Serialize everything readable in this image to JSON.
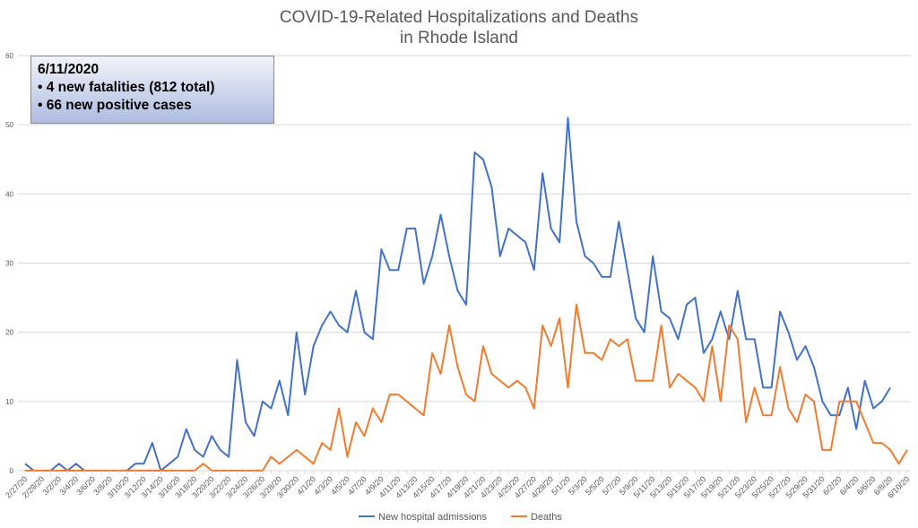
{
  "chart_data": {
    "type": "line",
    "title": [
      "COVID-19-Related Hospitalizations and Deaths",
      "in Rhode Island"
    ],
    "ylim": [
      0,
      60
    ],
    "yticks": [
      0,
      10,
      20,
      30,
      40,
      50,
      60
    ],
    "grid": true,
    "legend_placement": "bottom",
    "x": [
      "2/27/20",
      "2/28/20",
      "2/29/20",
      "3/1/20",
      "3/2/20",
      "3/3/20",
      "3/4/20",
      "3/5/20",
      "3/6/20",
      "3/7/20",
      "3/8/20",
      "3/9/20",
      "3/10/20",
      "3/11/20",
      "3/12/20",
      "3/13/20",
      "3/14/20",
      "3/15/20",
      "3/16/20",
      "3/17/20",
      "3/18/20",
      "3/19/20",
      "3/20/20",
      "3/21/20",
      "3/22/20",
      "3/23/20",
      "3/24/20",
      "3/25/20",
      "3/26/20",
      "3/27/20",
      "3/28/20",
      "3/29/20",
      "3/30/20",
      "3/31/20",
      "4/1/20",
      "4/2/20",
      "4/3/20",
      "4/4/20",
      "4/5/20",
      "4/6/20",
      "4/7/20",
      "4/8/20",
      "4/9/20",
      "4/10/20",
      "4/11/20",
      "4/12/20",
      "4/13/20",
      "4/14/20",
      "4/15/20",
      "4/16/20",
      "4/17/20",
      "4/18/20",
      "4/19/20",
      "4/20/20",
      "4/21/20",
      "4/22/20",
      "4/23/20",
      "4/24/20",
      "4/25/20",
      "4/26/20",
      "4/27/20",
      "4/28/20",
      "4/29/20",
      "4/30/20",
      "5/1/20",
      "5/2/20",
      "5/3/20",
      "5/4/20",
      "5/5/20",
      "5/6/20",
      "5/7/20",
      "5/8/20",
      "5/9/20",
      "5/10/20",
      "5/11/20",
      "5/12/20",
      "5/13/20",
      "5/14/20",
      "5/15/20",
      "5/16/20",
      "5/17/20",
      "5/18/20",
      "5/19/20",
      "5/20/20",
      "5/21/20",
      "5/22/20",
      "5/23/20",
      "5/24/20",
      "5/25/20",
      "5/26/20",
      "5/27/20",
      "5/28/20",
      "5/29/20",
      "5/30/20",
      "5/31/20",
      "6/1/20",
      "6/2/20",
      "6/3/20",
      "6/4/20",
      "6/5/20",
      "6/6/20",
      "6/7/20",
      "6/8/20",
      "6/9/20",
      "6/10/20"
    ],
    "series": [
      {
        "name": "New hospital admissions",
        "color": "#4472c4",
        "values": [
          1,
          0,
          0,
          0,
          1,
          0,
          1,
          0,
          0,
          0,
          0,
          0,
          0,
          1,
          1,
          4,
          0,
          1,
          2,
          6,
          3,
          2,
          5,
          3,
          2,
          16,
          7,
          5,
          10,
          9,
          13,
          8,
          20,
          11,
          18,
          21,
          23,
          21,
          20,
          26,
          20,
          19,
          32,
          29,
          29,
          35,
          35,
          27,
          31,
          37,
          31,
          26,
          24,
          46,
          45,
          41,
          31,
          35,
          34,
          33,
          29,
          43,
          35,
          33,
          51,
          36,
          31,
          30,
          28,
          28,
          36,
          29,
          22,
          20,
          31,
          23,
          22,
          19,
          24,
          25,
          17,
          19,
          23,
          19,
          26,
          19,
          19,
          12,
          12,
          23,
          20,
          16,
          18,
          15,
          10,
          8,
          8,
          12,
          6,
          13,
          9,
          10,
          12,
          null,
          null
        ]
      },
      {
        "name": "Deaths",
        "color": "#ed7d31",
        "values": [
          0,
          0,
          0,
          0,
          0,
          0,
          0,
          0,
          0,
          0,
          0,
          0,
          0,
          0,
          0,
          0,
          0,
          0,
          0,
          0,
          0,
          1,
          0,
          0,
          0,
          0,
          0,
          0,
          0,
          2,
          1,
          2,
          3,
          2,
          1,
          4,
          3,
          9,
          2,
          7,
          5,
          9,
          7,
          11,
          11,
          10,
          9,
          8,
          17,
          14,
          21,
          15,
          11,
          10,
          18,
          14,
          13,
          12,
          13,
          12,
          9,
          21,
          18,
          22,
          12,
          24,
          17,
          17,
          16,
          19,
          18,
          19,
          13,
          13,
          13,
          21,
          12,
          14,
          13,
          12,
          10,
          18,
          10,
          21,
          19,
          7,
          12,
          8,
          8,
          15,
          9,
          7,
          11,
          10,
          3,
          3,
          10,
          10,
          10,
          7,
          4,
          4,
          3,
          1,
          3
        ]
      }
    ]
  },
  "info_box": {
    "date": "6/11/2020",
    "lines": [
      "• 4 new fatalities (812 total)",
      "• 66 new positive cases"
    ]
  }
}
